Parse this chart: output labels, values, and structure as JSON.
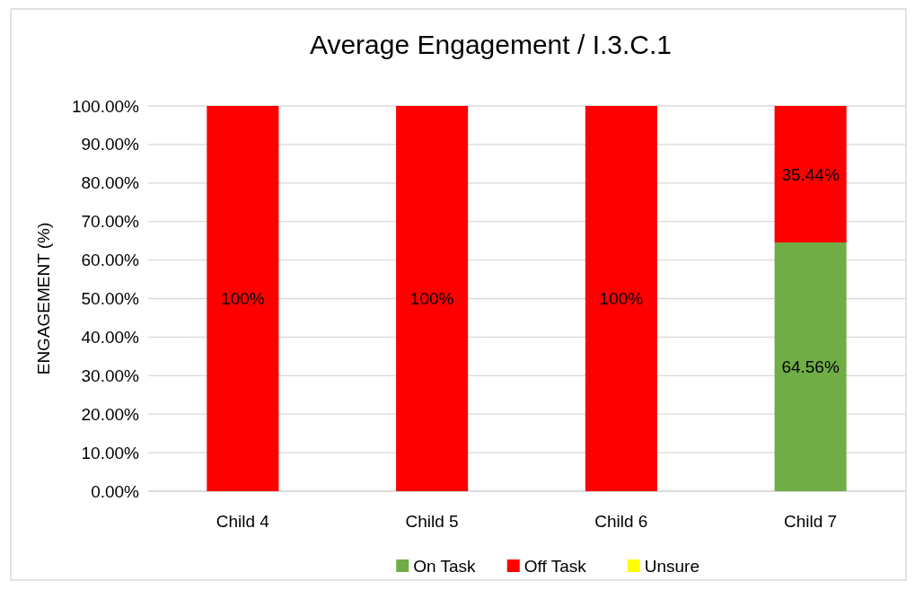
{
  "chart_data": {
    "type": "bar",
    "title": "Average Engagement / I.3.C.1",
    "ylabel": "ENGAGEMENT (%)",
    "categories": [
      "Child 4",
      "Child 5",
      "Child 6",
      "Child 7"
    ],
    "stacked": true,
    "series": [
      {
        "name": "On Task",
        "color": "#70ad47",
        "values": [
          0,
          0,
          0,
          64.56
        ],
        "value_labels": [
          null,
          null,
          null,
          "64.56%"
        ]
      },
      {
        "name": "Off Task",
        "color": "#ff0000",
        "values": [
          100,
          100,
          100,
          35.44
        ],
        "value_labels": [
          "100%",
          "100%",
          "100%",
          "35.44%"
        ]
      },
      {
        "name": "Unsure",
        "color": "#ffff00",
        "values": [
          0,
          0,
          0,
          0
        ],
        "value_labels": [
          null,
          null,
          null,
          null
        ]
      }
    ],
    "ylim": [
      0,
      100
    ],
    "yticks": [
      {
        "value": 0,
        "label": "0.00%"
      },
      {
        "value": 10,
        "label": "10.00%"
      },
      {
        "value": 20,
        "label": "20.00%"
      },
      {
        "value": 30,
        "label": "30.00%"
      },
      {
        "value": 40,
        "label": "40.00%"
      },
      {
        "value": 50,
        "label": "50.00%"
      },
      {
        "value": 60,
        "label": "60.00%"
      },
      {
        "value": 70,
        "label": "70.00%"
      },
      {
        "value": 80,
        "label": "80.00%"
      },
      {
        "value": 90,
        "label": "90.00%"
      },
      {
        "value": 100,
        "label": "100.00%"
      }
    ],
    "grid": "y",
    "legend": "bottom"
  }
}
